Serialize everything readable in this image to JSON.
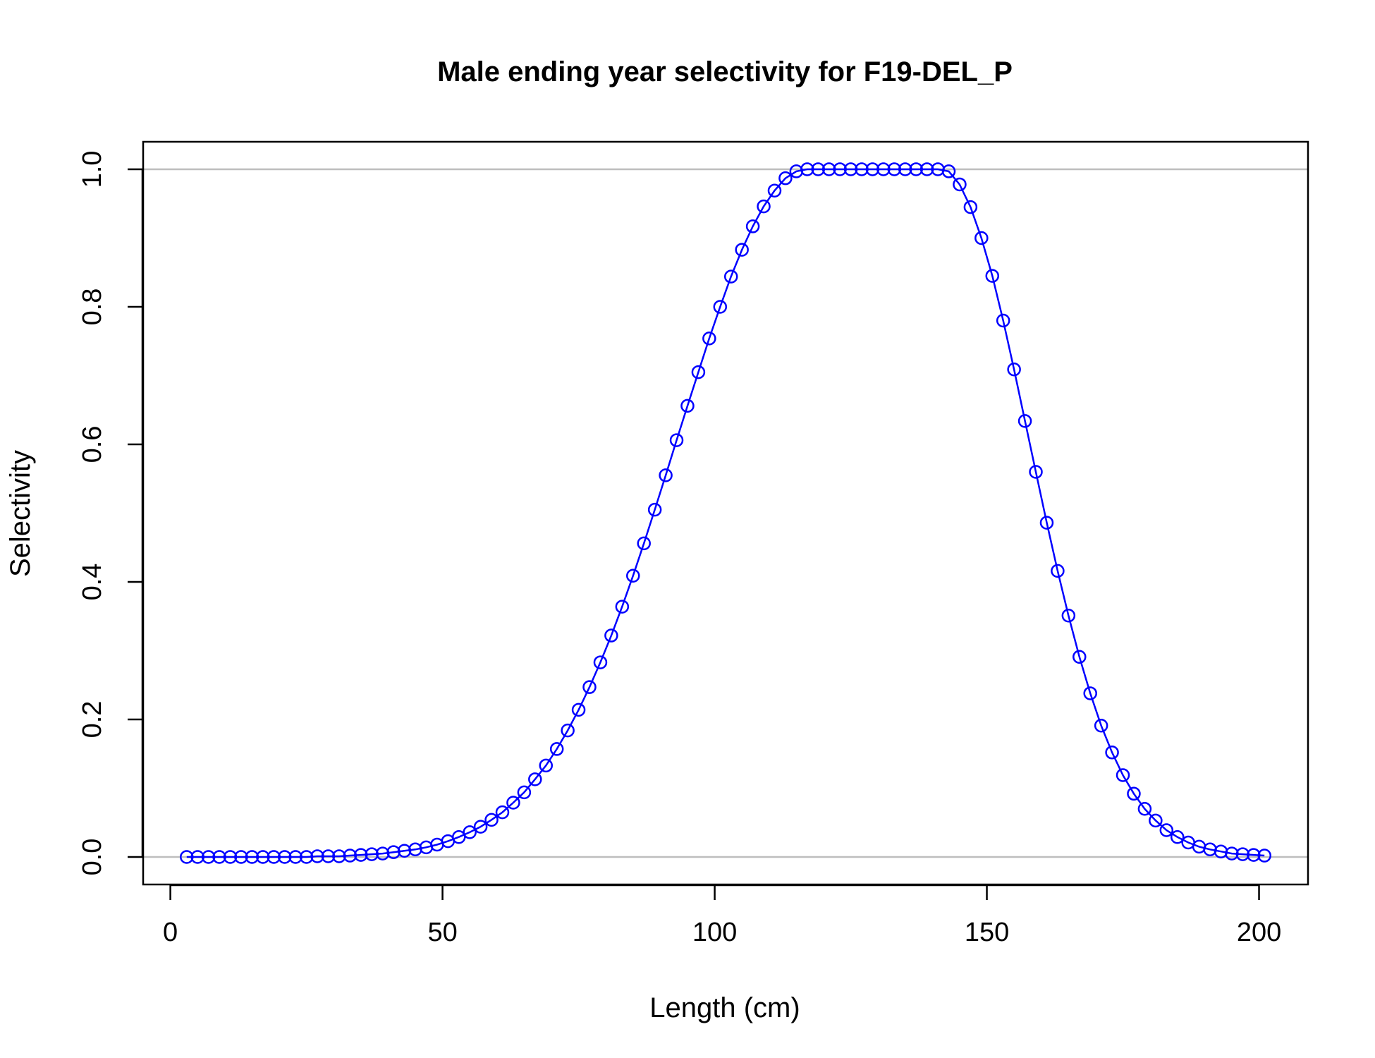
{
  "colors": {
    "series": "#0000ff",
    "reference_lines": "#bebebe",
    "axis": "#000000",
    "background": "#ffffff"
  },
  "chart_data": {
    "type": "line",
    "title": "Male ending year selectivity for F19-DEL_P",
    "xlabel": "Length (cm)",
    "ylabel": "Selectivity",
    "xlim": [
      -5,
      209
    ],
    "ylim": [
      -0.04,
      1.04
    ],
    "xticks": [
      0,
      50,
      100,
      150,
      200
    ],
    "yticks": [
      0.0,
      0.2,
      0.4,
      0.6,
      0.8,
      1.0
    ],
    "xtick_labels": [
      "0",
      "50",
      "100",
      "150",
      "200"
    ],
    "ytick_labels": [
      "0.0",
      "0.2",
      "0.4",
      "0.6",
      "0.8",
      "1.0"
    ],
    "reference_lines_y": [
      0,
      1
    ],
    "markers": "open-circle",
    "grid": false,
    "legend": false,
    "x": [
      3,
      5,
      7,
      9,
      11,
      13,
      15,
      17,
      19,
      21,
      23,
      25,
      27,
      29,
      31,
      33,
      35,
      37,
      39,
      41,
      43,
      45,
      47,
      49,
      51,
      53,
      55,
      57,
      59,
      61,
      63,
      65,
      67,
      69,
      71,
      73,
      75,
      77,
      79,
      81,
      83,
      85,
      87,
      89,
      91,
      93,
      95,
      97,
      99,
      101,
      103,
      105,
      107,
      109,
      111,
      113,
      115,
      117,
      119,
      121,
      123,
      125,
      127,
      129,
      131,
      133,
      135,
      137,
      139,
      141,
      143,
      145,
      147,
      149,
      151,
      153,
      155,
      157,
      159,
      161,
      163,
      165,
      167,
      169,
      171,
      173,
      175,
      177,
      179,
      181,
      183,
      185,
      187,
      189,
      191,
      193,
      195,
      197,
      199,
      201
    ],
    "y": [
      0.0,
      0.0,
      0.0,
      0.0,
      0.0,
      0.0,
      0.0,
      0.0,
      0.0,
      0.0,
      0.0,
      0.0,
      0.001,
      0.001,
      0.001,
      0.002,
      0.003,
      0.004,
      0.005,
      0.007,
      0.009,
      0.011,
      0.014,
      0.018,
      0.023,
      0.029,
      0.036,
      0.044,
      0.054,
      0.065,
      0.079,
      0.094,
      0.113,
      0.133,
      0.157,
      0.184,
      0.214,
      0.247,
      0.283,
      0.322,
      0.364,
      0.409,
      0.456,
      0.505,
      0.555,
      0.606,
      0.656,
      0.705,
      0.754,
      0.8,
      0.844,
      0.883,
      0.917,
      0.946,
      0.969,
      0.987,
      0.997,
      1.0,
      1.0,
      1.0,
      1.0,
      1.0,
      1.0,
      1.0,
      1.0,
      1.0,
      1.0,
      1.0,
      1.0,
      1.0,
      0.997,
      0.978,
      0.945,
      0.9,
      0.845,
      0.78,
      0.709,
      0.634,
      0.56,
      0.486,
      0.416,
      0.351,
      0.291,
      0.238,
      0.191,
      0.152,
      0.119,
      0.092,
      0.07,
      0.053,
      0.039,
      0.029,
      0.021,
      0.015,
      0.011,
      0.008,
      0.005,
      0.004,
      0.003,
      0.002
    ]
  }
}
